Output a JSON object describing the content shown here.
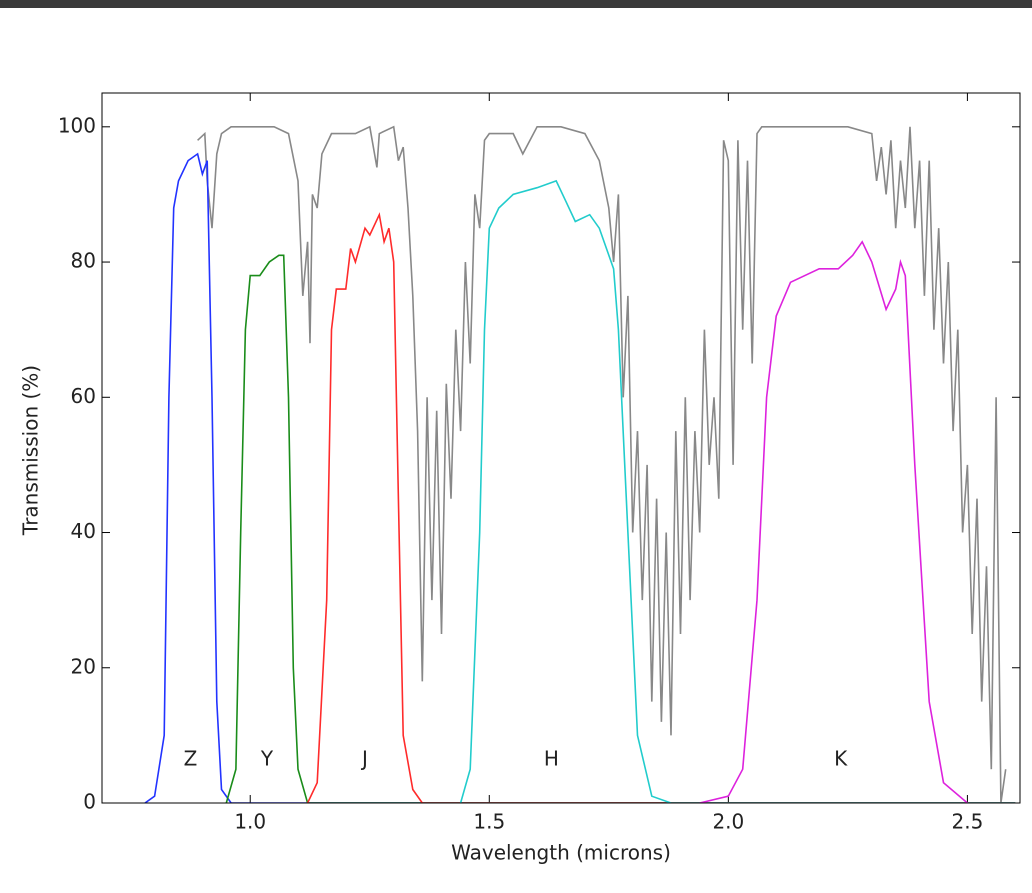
{
  "chart_data": {
    "type": "line",
    "xlabel": "Wavelength (microns)",
    "ylabel": "Transmission (%)",
    "xlim": [
      0.69,
      2.61
    ],
    "ylim": [
      0,
      105
    ],
    "xticks": [
      {
        "value": 1,
        "label": "1.0"
      },
      {
        "value": 1.5,
        "label": "1.5"
      },
      {
        "value": 2,
        "label": "2.0"
      },
      {
        "value": 2.5,
        "label": "2.5"
      }
    ],
    "yticks": [
      0,
      20,
      40,
      60,
      80,
      100
    ],
    "grid": false,
    "series": [
      {
        "color": "#888888",
        "x": [
          0.89,
          0.905,
          0.91,
          0.92,
          0.93,
          0.94,
          0.96,
          1.0,
          1.05,
          1.08,
          1.1,
          1.11,
          1.12,
          1.125,
          1.13,
          1.14,
          1.15,
          1.17,
          1.2,
          1.22,
          1.25,
          1.265,
          1.27,
          1.3,
          1.31,
          1.32,
          1.33,
          1.34,
          1.35,
          1.36,
          1.37,
          1.38,
          1.39,
          1.4,
          1.41,
          1.42,
          1.43,
          1.44,
          1.45,
          1.46,
          1.47,
          1.48,
          1.49,
          1.5,
          1.55,
          1.57,
          1.6,
          1.65,
          1.7,
          1.73,
          1.75,
          1.76,
          1.77,
          1.78,
          1.79,
          1.8,
          1.81,
          1.82,
          1.83,
          1.84,
          1.85,
          1.86,
          1.87,
          1.88,
          1.89,
          1.9,
          1.91,
          1.92,
          1.93,
          1.94,
          1.95,
          1.96,
          1.97,
          1.98,
          1.99,
          2.0,
          2.01,
          2.02,
          2.03,
          2.04,
          2.05,
          2.06,
          2.07,
          2.15,
          2.2,
          2.25,
          2.3,
          2.31,
          2.32,
          2.33,
          2.34,
          2.35,
          2.36,
          2.37,
          2.38,
          2.39,
          2.4,
          2.41,
          2.42,
          2.43,
          2.44,
          2.45,
          2.46,
          2.47,
          2.48,
          2.49,
          2.5,
          2.51,
          2.52,
          2.53,
          2.54,
          2.55,
          2.56,
          2.57,
          2.58
        ],
        "values": [
          98,
          99,
          92,
          85,
          96,
          99,
          100,
          100,
          100,
          99,
          92,
          75,
          83,
          68,
          90,
          88,
          96,
          99,
          99,
          99,
          100,
          94,
          99,
          100,
          95,
          97,
          88,
          75,
          55,
          18,
          60,
          30,
          58,
          25,
          62,
          45,
          70,
          55,
          80,
          65,
          90,
          85,
          98,
          99,
          99,
          96,
          100,
          100,
          99,
          95,
          88,
          80,
          90,
          60,
          75,
          40,
          55,
          30,
          50,
          15,
          45,
          12,
          40,
          10,
          55,
          25,
          60,
          30,
          55,
          40,
          70,
          50,
          60,
          45,
          98,
          95,
          50,
          98,
          70,
          95,
          65,
          99,
          100,
          100,
          100,
          100,
          99,
          92,
          97,
          90,
          98,
          85,
          95,
          88,
          100,
          85,
          95,
          75,
          95,
          70,
          85,
          65,
          80,
          55,
          70,
          40,
          50,
          25,
          45,
          15,
          35,
          5,
          60,
          0,
          5
        ]
      },
      {
        "name": "Z",
        "color": "#2233ff",
        "x": [
          0.78,
          0.8,
          0.82,
          0.83,
          0.84,
          0.85,
          0.87,
          0.89,
          0.9,
          0.91,
          0.92,
          0.93,
          0.94,
          0.96,
          2.6
        ],
        "values": [
          0,
          1,
          10,
          60,
          88,
          92,
          95,
          96,
          93,
          95,
          60,
          15,
          2,
          0,
          0
        ]
      },
      {
        "name": "Y",
        "color": "#1a8c1a",
        "x": [
          0.95,
          0.97,
          0.98,
          0.99,
          1.0,
          1.02,
          1.04,
          1.06,
          1.07,
          1.08,
          1.09,
          1.1,
          1.12,
          2.6
        ],
        "values": [
          0,
          5,
          40,
          70,
          78,
          78,
          80,
          81,
          81,
          60,
          20,
          5,
          0,
          0
        ]
      },
      {
        "name": "J",
        "color": "#ff2b2b",
        "x": [
          1.12,
          1.14,
          1.16,
          1.17,
          1.18,
          1.2,
          1.21,
          1.22,
          1.24,
          1.25,
          1.27,
          1.28,
          1.29,
          1.3,
          1.31,
          1.32,
          1.34,
          1.36,
          2.6
        ],
        "values": [
          0,
          3,
          30,
          70,
          76,
          76,
          82,
          80,
          85,
          84,
          87,
          83,
          85,
          80,
          45,
          10,
          2,
          0,
          0
        ]
      },
      {
        "name": "H",
        "color": "#22cccc",
        "x": [
          1.44,
          1.46,
          1.48,
          1.49,
          1.5,
          1.52,
          1.55,
          1.6,
          1.64,
          1.66,
          1.68,
          1.71,
          1.73,
          1.76,
          1.77,
          1.79,
          1.81,
          1.84,
          1.88,
          2.6
        ],
        "values": [
          0,
          5,
          40,
          70,
          85,
          88,
          90,
          91,
          92,
          89,
          86,
          87,
          85,
          79,
          70,
          40,
          10,
          1,
          0,
          0
        ]
      },
      {
        "name": "K",
        "color": "#dd22dd",
        "x": [
          1.94,
          2.0,
          2.03,
          2.06,
          2.08,
          2.1,
          2.13,
          2.19,
          2.23,
          2.26,
          2.28,
          2.3,
          2.33,
          2.35,
          2.36,
          2.37,
          2.39,
          2.42,
          2.45,
          2.5
        ],
        "values": [
          0,
          1,
          5,
          30,
          60,
          72,
          77,
          79,
          79,
          81,
          83,
          80,
          73,
          76,
          80,
          78,
          50,
          15,
          3,
          0
        ]
      }
    ]
  }
}
